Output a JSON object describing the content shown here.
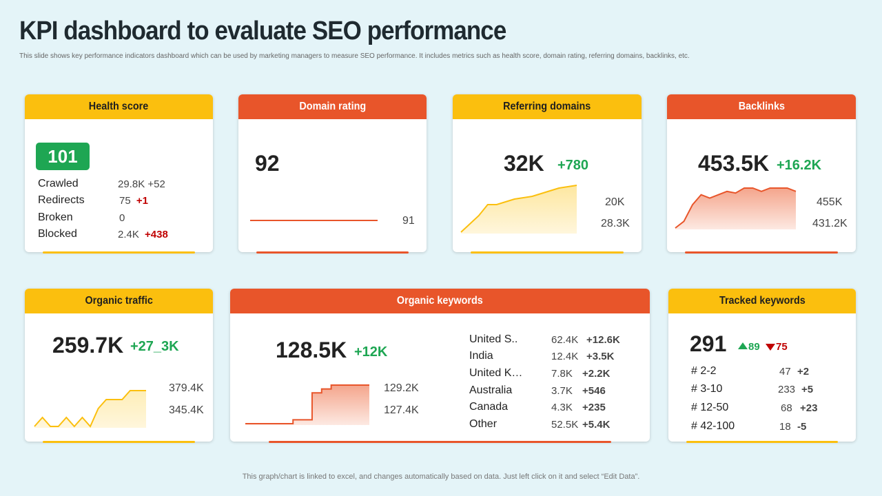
{
  "page": {
    "title": "KPI dashboard to evaluate SEO performance",
    "subtitle": "This slide shows key performance indicators dashboard which can be used by marketing managers to measure SEO performance. It includes metrics such as health score, domain rating, referring domains, backlinks, etc.",
    "footer": "This graph/chart is linked to excel, and changes automatically based on data. Just left click on it and select “Edit Data”."
  },
  "colors": {
    "yellow": "#fbbf0e",
    "orange": "#e8552a",
    "green": "#1ea653",
    "red": "#c00000",
    "background": "#e4f4f8"
  },
  "health": {
    "title": "Health score",
    "score": "101",
    "rows": [
      {
        "label": "Crawled",
        "value": "29.8K",
        "delta": "+52",
        "delta_type": "neutral"
      },
      {
        "label": "Redirects",
        "value": "75",
        "delta": "+1",
        "delta_type": "negative"
      },
      {
        "label": "Broken",
        "value": "0",
        "delta": "",
        "delta_type": "neutral"
      },
      {
        "label": "Blocked",
        "value": "2.4K",
        "delta": "+438",
        "delta_type": "negative"
      }
    ]
  },
  "domain": {
    "title": "Domain rating",
    "value": "92",
    "line_value": "91"
  },
  "referring": {
    "title": "Referring domains",
    "value": "32K",
    "delta": "+780",
    "max_label": "20K",
    "min_label": "28.3K"
  },
  "backlinks": {
    "title": "Backlinks",
    "value": "453.5K",
    "delta": "+16.2K",
    "max_label": "455K",
    "min_label": "431.2K"
  },
  "traffic": {
    "title": "Organic traffic",
    "value": "259.7K",
    "delta": "+27_3K",
    "max_label": "379.4K",
    "min_label": "345.4K"
  },
  "keywords": {
    "title": "Organic keywords",
    "value": "128.5K",
    "delta": "+12K",
    "max_label": "129.2K",
    "min_label": "127.4K",
    "countries": [
      {
        "name": "United S..",
        "value": "62.4K",
        "delta": "+12.6K"
      },
      {
        "name": "India",
        "value": "12.4K",
        "delta": "+3.5K"
      },
      {
        "name": "United K…",
        "value": "7.8K",
        "delta": "+2.2K"
      },
      {
        "name": "Australia",
        "value": "3.7K",
        "delta": "+546"
      },
      {
        "name": "Canada",
        "value": "4.3K",
        "delta": "+235"
      },
      {
        "name": "Other",
        "value": "52.5K",
        "delta": "+5.4K"
      }
    ]
  },
  "tracked": {
    "title": "Tracked keywords",
    "value": "291",
    "up": "89",
    "down": "75",
    "rows": [
      {
        "label": "# 2-2",
        "value": "47",
        "delta": "+2",
        "delta_type": "positive"
      },
      {
        "label": "# 3-10",
        "value": "233",
        "delta": "+5",
        "delta_type": "positive"
      },
      {
        "label": "# 12-50",
        "value": "68",
        "delta": "+23",
        "delta_type": "positive"
      },
      {
        "label": "# 42-100",
        "value": "18",
        "delta": "-5",
        "delta_type": "negative"
      }
    ]
  },
  "chart_data": [
    {
      "type": "area",
      "name": "referring-domains-trend",
      "values": [
        0,
        3,
        6,
        10,
        10,
        11,
        12,
        12.5,
        13,
        14,
        15,
        16,
        16.5,
        17
      ]
    },
    {
      "type": "area",
      "name": "backlinks-trend",
      "values": [
        0,
        2,
        7,
        10,
        9,
        10,
        11,
        10.5,
        12,
        12,
        11,
        12,
        12,
        12,
        11
      ]
    },
    {
      "type": "area",
      "name": "organic-traffic-trend",
      "values": [
        1,
        2,
        1,
        1,
        2,
        1,
        2,
        1,
        3,
        4,
        4,
        4,
        5,
        5,
        5
      ]
    },
    {
      "type": "area",
      "name": "organic-keywords-trend",
      "values": [
        0,
        0,
        0,
        0,
        0,
        0.5,
        0.5,
        4,
        4.5,
        5,
        5,
        5,
        5,
        5
      ]
    },
    {
      "type": "line",
      "name": "domain-rating-trend",
      "values": [
        1,
        1,
        1,
        1,
        1,
        1,
        1,
        1,
        1,
        1
      ]
    }
  ]
}
